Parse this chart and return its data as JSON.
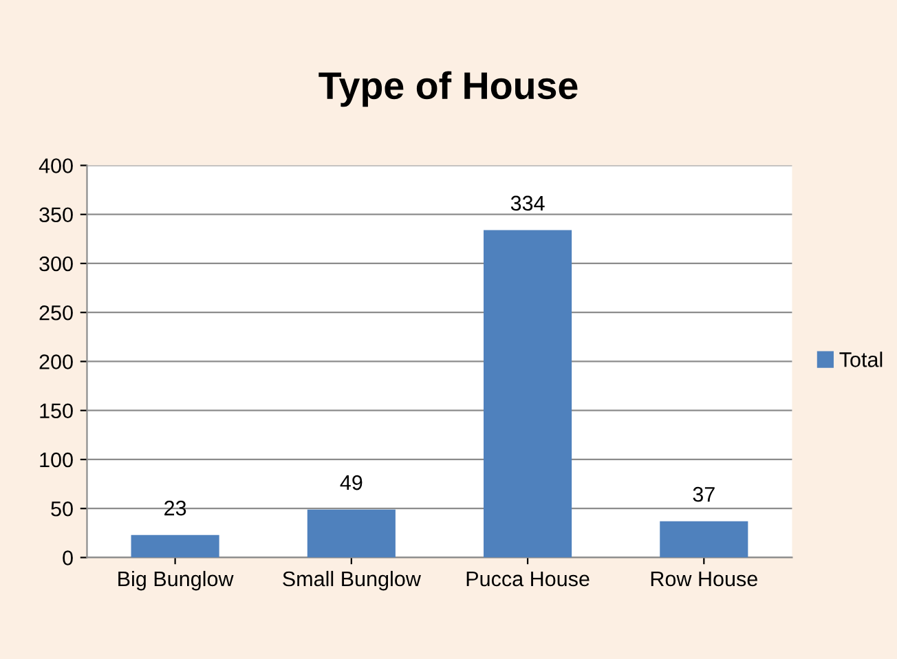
{
  "chart_data": {
    "type": "bar",
    "title": "Type of House",
    "categories": [
      "Big Bunglow",
      "Small Bunglow",
      "Pucca House",
      "Row House"
    ],
    "series": [
      {
        "name": "Total",
        "color": "#4f81bd",
        "values": [
          23,
          49,
          334,
          37
        ]
      }
    ],
    "ylim": [
      0,
      400
    ],
    "yticks": [
      0,
      50,
      100,
      150,
      200,
      250,
      300,
      350,
      400
    ],
    "grid": "y",
    "legend": "right",
    "data_labels": true
  }
}
